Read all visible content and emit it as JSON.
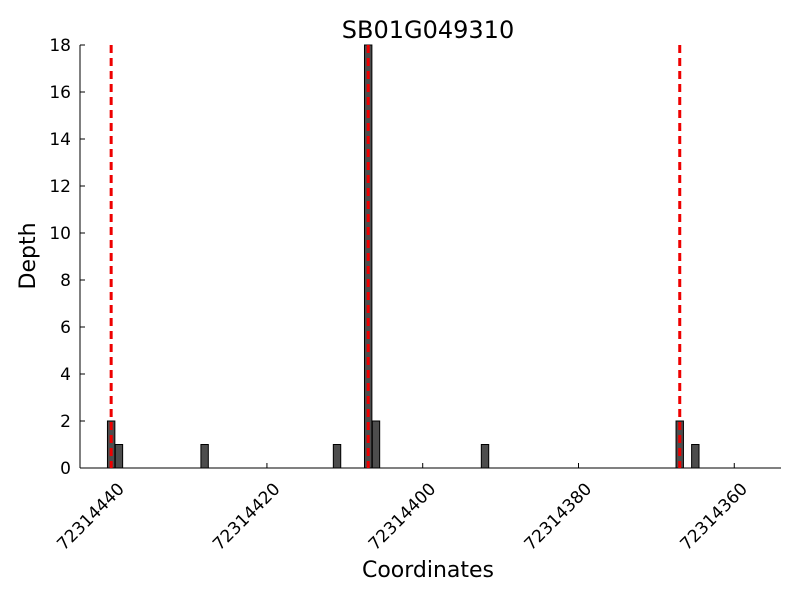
{
  "chart_data": {
    "type": "bar",
    "title": "SB01G049310",
    "xlabel": "Coordinates",
    "ylabel": "Depth",
    "x_axis_reversed": true,
    "xlim": [
      72314444,
      72314354
    ],
    "ylim": [
      0,
      18
    ],
    "grid": false,
    "x_ticks": [
      72314440,
      72314420,
      72314400,
      72314380,
      72314360
    ],
    "x_tick_labels": [
      "72314440",
      "72314420",
      "72314400",
      "72314380",
      "72314360"
    ],
    "y_ticks": [
      0,
      2,
      4,
      6,
      8,
      10,
      12,
      14,
      16,
      18
    ],
    "y_tick_labels": [
      "0",
      "2",
      "4",
      "6",
      "8",
      "10",
      "12",
      "14",
      "16",
      "18"
    ],
    "bar_color": "#4d4d4d",
    "bars": [
      {
        "x": 72314440,
        "y": 2
      },
      {
        "x": 72314439,
        "y": 1
      },
      {
        "x": 72314428,
        "y": 1
      },
      {
        "x": 72314411,
        "y": 1
      },
      {
        "x": 72314407,
        "y": 18
      },
      {
        "x": 72314406,
        "y": 2
      },
      {
        "x": 72314392,
        "y": 1
      },
      {
        "x": 72314367,
        "y": 2
      },
      {
        "x": 72314365,
        "y": 1
      }
    ],
    "reference_lines": {
      "color": "#ee0000",
      "style": "dashed",
      "x": [
        72314440,
        72314407,
        72314367
      ]
    }
  }
}
